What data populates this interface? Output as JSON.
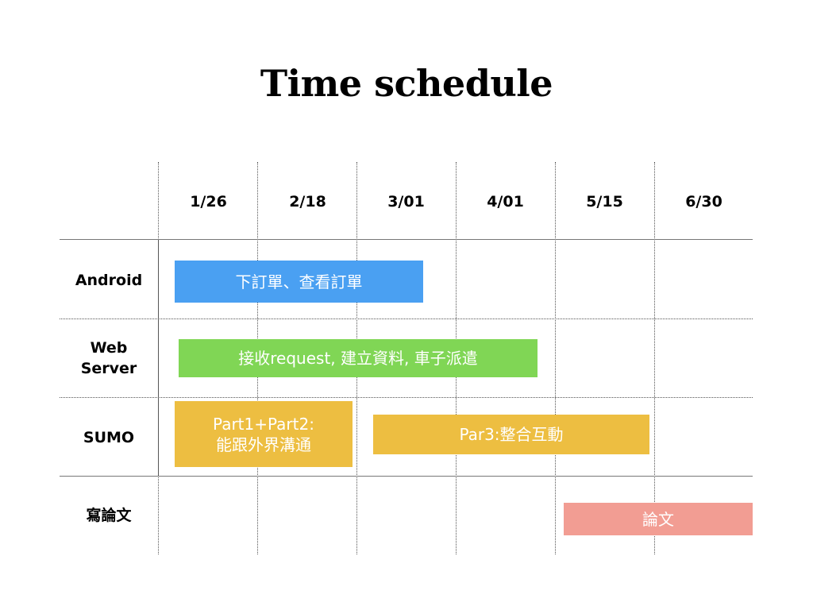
{
  "title": "Time schedule",
  "dates": [
    "1/26",
    "2/18",
    "3/01",
    "4/01",
    "5/15",
    "6/30"
  ],
  "rows": [
    {
      "label_lines": [
        "Android"
      ]
    },
    {
      "label_lines": [
        "Web",
        "Server"
      ]
    },
    {
      "label_lines": [
        "SUMO"
      ]
    },
    {
      "label_lines": [
        "寫論文"
      ]
    }
  ],
  "tasks": [
    {
      "row": 0,
      "lines": [
        "下訂單、查看訂單"
      ],
      "color": "#4aa0f2"
    },
    {
      "row": 1,
      "lines": [
        "接收request, 建立資料, 車子派遣"
      ],
      "color": "#80d655"
    },
    {
      "row": 2,
      "lines": [
        "Part1+Part2:",
        "能跟外界溝通"
      ],
      "color": "#edbe41"
    },
    {
      "row": 2,
      "lines": [
        "Par3:整合互動"
      ],
      "color": "#edbe41"
    },
    {
      "row": 3,
      "lines": [
        "論文"
      ],
      "color": "#f29d93"
    }
  ]
}
